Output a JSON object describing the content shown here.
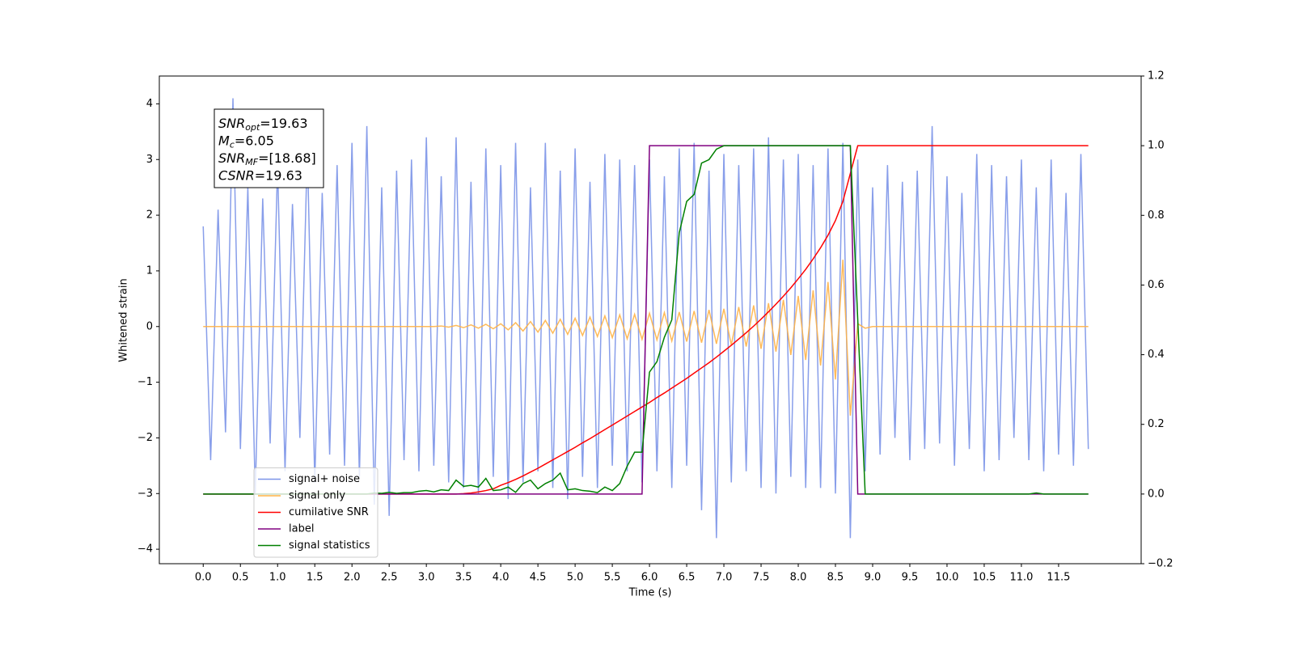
{
  "chart_data": {
    "type": "line",
    "xlabel": "Time (s)",
    "ylabel": "Whitened strain",
    "xlim": [
      -0.59,
      12.61
    ],
    "ylim": [
      -4.26,
      4.5
    ],
    "y2lim": [
      -0.2,
      1.2
    ],
    "xticks": [
      {
        "value": 0,
        "label": "0.0"
      },
      0.5,
      {
        "value": 1,
        "label": "1.0"
      },
      1.5,
      {
        "value": 2,
        "label": "2.0"
      },
      2.5,
      {
        "value": 3,
        "label": "3.0"
      },
      3.5,
      {
        "value": 4,
        "label": "4.0"
      },
      4.5,
      {
        "value": 5,
        "label": "5.0"
      },
      5.5,
      {
        "value": 6,
        "label": "6.0"
      },
      6.5,
      {
        "value": 7,
        "label": "7.0"
      },
      7.5,
      {
        "value": 8,
        "label": "8.0"
      },
      8.5,
      {
        "value": 9,
        "label": "9.0"
      },
      9.5,
      {
        "value": 10,
        "label": "10.0"
      },
      10.5,
      {
        "value": 11,
        "label": "11.0"
      },
      11.5
    ],
    "yticks": [
      {
        "value": -4,
        "label": "−4"
      },
      {
        "value": -3,
        "label": "−3"
      },
      {
        "value": -2,
        "label": "−2"
      },
      {
        "value": -1,
        "label": "−1"
      },
      0,
      1,
      2,
      3,
      4
    ],
    "y2ticks": [
      {
        "value": -0.2,
        "label": "−0.2"
      },
      {
        "value": 0,
        "label": "0.0"
      },
      0.2,
      0.4,
      0.6,
      0.8,
      {
        "value": 1,
        "label": "1.0"
      },
      1.2
    ],
    "legend_loc": "lower left",
    "annotation": [
      {
        "main": "SNR",
        "sub": "opt",
        "rest": "=19.63"
      },
      {
        "main": "M",
        "sub": "c",
        "rest": "=6.05"
      },
      {
        "main": "SNR",
        "sub": "MF",
        "rest": "=[18.68]"
      },
      {
        "main": "CSNR",
        "sub": null,
        "rest": "=19.63"
      }
    ],
    "x": [
      0,
      0.1,
      0.2,
      0.3,
      0.4,
      0.5,
      0.6,
      0.7,
      0.8,
      0.9,
      1,
      1.1,
      1.2,
      1.3,
      1.4,
      1.5,
      1.6,
      1.7,
      1.8,
      1.9,
      2,
      2.1,
      2.2,
      2.3,
      2.4,
      2.5,
      2.6,
      2.7,
      2.8,
      2.9,
      3,
      3.1,
      3.2,
      3.3,
      3.4,
      3.5,
      3.6,
      3.7,
      3.8,
      3.9,
      4,
      4.1,
      4.2,
      4.3,
      4.4,
      4.5,
      4.6,
      4.7,
      4.8,
      4.9,
      5,
      5.1,
      5.2,
      5.3,
      5.4,
      5.5,
      5.6,
      5.7,
      5.8,
      5.9,
      6,
      6.1,
      6.2,
      6.3,
      6.4,
      6.5,
      6.6,
      6.7,
      6.8,
      6.9,
      7,
      7.1,
      7.2,
      7.3,
      7.4,
      7.5,
      7.6,
      7.7,
      7.8,
      7.9,
      8,
      8.1,
      8.2,
      8.3,
      8.4,
      8.5,
      8.6,
      8.7,
      8.8,
      8.9,
      9,
      9.1,
      9.2,
      9.3,
      9.4,
      9.5,
      9.6,
      9.7,
      9.8,
      9.9,
      10,
      10.1,
      10.2,
      10.3,
      10.4,
      10.5,
      10.6,
      10.7,
      10.8,
      10.9,
      11,
      11.1,
      11.2,
      11.3,
      11.4,
      11.5,
      11.6,
      11.7,
      11.8,
      11.9
    ],
    "series": [
      {
        "name": "signal+ noise",
        "color": "#7b93e8",
        "axis": "y",
        "values": [
          1.8,
          -2.4,
          2.1,
          -1.9,
          4.1,
          -2.2,
          2.5,
          -3.0,
          2.3,
          -2.1,
          2.9,
          -2.6,
          2.2,
          -2.0,
          3.2,
          -2.8,
          2.4,
          -2.3,
          2.9,
          -2.5,
          3.3,
          -2.7,
          3.6,
          -3.2,
          2.5,
          -3.4,
          2.8,
          -2.4,
          3.0,
          -2.6,
          3.4,
          -2.5,
          2.7,
          -2.8,
          3.4,
          -2.9,
          2.6,
          -3.0,
          3.2,
          -2.7,
          2.9,
          -3.1,
          3.3,
          -2.8,
          2.5,
          -2.6,
          3.3,
          -2.9,
          2.8,
          -3.1,
          3.2,
          -2.7,
          2.6,
          -2.9,
          3.1,
          -2.5,
          3.0,
          -2.6,
          2.9,
          -2.8,
          3.0,
          -2.6,
          2.7,
          -2.9,
          3.2,
          -2.5,
          3.3,
          -3.3,
          2.8,
          -3.8,
          3.1,
          -2.8,
          2.9,
          -2.6,
          3.2,
          -2.9,
          3.4,
          -3.0,
          3.0,
          -2.7,
          3.1,
          -2.9,
          2.9,
          -2.9,
          3.2,
          -3.0,
          3.3,
          -3.8,
          3.0,
          -2.6,
          2.5,
          -2.3,
          2.9,
          -2.0,
          2.6,
          -2.4,
          2.8,
          -2.2,
          3.6,
          -2.1,
          2.7,
          -2.5,
          2.4,
          -2.2,
          3.1,
          -2.6,
          2.9,
          -2.4,
          2.7,
          -2.0,
          3.0,
          -2.4,
          2.5,
          -2.6,
          3.0,
          -2.3,
          2.4,
          -2.5,
          3.1,
          -2.2
        ]
      },
      {
        "name": "signal only",
        "color": "#ffb347",
        "axis": "y",
        "values": [
          0,
          0,
          0,
          0,
          0,
          0,
          0,
          0,
          0,
          0,
          0,
          0,
          0,
          0,
          0,
          0,
          0,
          0,
          0,
          0,
          0,
          0,
          0,
          0,
          0,
          0,
          0,
          0,
          0,
          0,
          0,
          0,
          0.01,
          -0.01,
          0.02,
          -0.02,
          0.03,
          -0.03,
          0.04,
          -0.04,
          0.05,
          -0.06,
          0.07,
          -0.08,
          0.09,
          -0.1,
          0.11,
          -0.12,
          0.13,
          -0.14,
          0.15,
          -0.16,
          0.17,
          -0.18,
          0.19,
          -0.2,
          0.21,
          -0.22,
          0.22,
          -0.23,
          0.24,
          -0.24,
          0.25,
          -0.26,
          0.26,
          -0.27,
          0.28,
          -0.29,
          0.3,
          -0.31,
          0.32,
          -0.33,
          0.35,
          -0.36,
          0.38,
          -0.4,
          0.42,
          -0.45,
          0.48,
          -0.51,
          0.55,
          -0.6,
          0.65,
          -0.7,
          0.8,
          -0.95,
          1.2,
          -1.6,
          0.05,
          -0.03,
          0,
          0,
          0,
          0,
          0,
          0,
          0,
          0,
          0,
          0,
          0,
          0,
          0,
          0,
          0,
          0,
          0,
          0,
          0,
          0,
          0,
          0,
          0,
          0,
          0,
          0,
          0,
          0,
          0,
          0
        ]
      },
      {
        "name": "cumilative SNR",
        "color": "#ff0000",
        "axis": "y2",
        "values": [
          0,
          0,
          0,
          0,
          0,
          0,
          0,
          0,
          0,
          0,
          0,
          0,
          0,
          0,
          0,
          0,
          0,
          0,
          0,
          0,
          0,
          0,
          0,
          0,
          0,
          0,
          0,
          0,
          0,
          0,
          0,
          0,
          0,
          0,
          0,
          0.001,
          0.003,
          0.006,
          0.01,
          0.015,
          0.025,
          0.033,
          0.042,
          0.052,
          0.063,
          0.074,
          0.086,
          0.098,
          0.11,
          0.122,
          0.134,
          0.147,
          0.159,
          0.172,
          0.185,
          0.198,
          0.211,
          0.224,
          0.237,
          0.25,
          0.263,
          0.277,
          0.29,
          0.304,
          0.318,
          0.332,
          0.347,
          0.362,
          0.377,
          0.393,
          0.41,
          0.427,
          0.445,
          0.463,
          0.482,
          0.502,
          0.523,
          0.545,
          0.568,
          0.592,
          0.618,
          0.645,
          0.675,
          0.707,
          0.743,
          0.785,
          0.84,
          0.92,
          1,
          1,
          1,
          1,
          1,
          1,
          1,
          1,
          1,
          1,
          1,
          1,
          1,
          1,
          1,
          1,
          1,
          1,
          1,
          1,
          1,
          1,
          1,
          1,
          1,
          1,
          1,
          1,
          1,
          1,
          1,
          1
        ]
      },
      {
        "name": "label",
        "color": "#800080",
        "axis": "y2",
        "values": [
          0,
          0,
          0,
          0,
          0,
          0,
          0,
          0,
          0,
          0,
          0,
          0,
          0,
          0,
          0,
          0,
          0,
          0,
          0,
          0,
          0,
          0,
          0,
          0,
          0,
          0,
          0,
          0,
          0,
          0,
          0,
          0,
          0,
          0,
          0,
          0,
          0,
          0,
          0,
          0,
          0,
          0,
          0,
          0,
          0,
          0,
          0,
          0,
          0,
          0,
          0,
          0,
          0,
          0,
          0,
          0,
          0,
          0,
          0,
          0,
          1,
          1,
          1,
          1,
          1,
          1,
          1,
          1,
          1,
          1,
          1,
          1,
          1,
          1,
          1,
          1,
          1,
          1,
          1,
          1,
          1,
          1,
          1,
          1,
          1,
          1,
          1,
          1,
          0,
          0,
          0,
          0,
          0,
          0,
          0,
          0,
          0,
          0,
          0,
          0,
          0,
          0,
          0,
          0,
          0,
          0,
          0,
          0,
          0,
          0,
          0,
          0,
          0,
          0,
          0,
          0,
          0,
          0,
          0,
          0
        ]
      },
      {
        "name": "signal statistics",
        "color": "#008000",
        "axis": "y2",
        "values": [
          0,
          0,
          0,
          0,
          0,
          0,
          0,
          0,
          0,
          0,
          0,
          0,
          0,
          0,
          0,
          0,
          0,
          0,
          0,
          0,
          0,
          0,
          0,
          0.003,
          0.002,
          0.005,
          0.002,
          0.004,
          0.004,
          0.008,
          0.01,
          0.006,
          0.012,
          0.01,
          0.04,
          0.022,
          0.025,
          0.02,
          0.045,
          0.01,
          0.012,
          0.02,
          0.005,
          0.03,
          0.04,
          0.015,
          0.03,
          0.04,
          0.06,
          0.012,
          0.015,
          0.01,
          0.008,
          0.004,
          0.02,
          0.01,
          0.03,
          0.08,
          0.12,
          0.12,
          0.35,
          0.38,
          0.45,
          0.5,
          0.75,
          0.84,
          0.86,
          0.95,
          0.96,
          0.99,
          1,
          1,
          1,
          1,
          1,
          1,
          1,
          1,
          1,
          1,
          1,
          1,
          1,
          1,
          1,
          1,
          1,
          1,
          0.5,
          0,
          0,
          0,
          0,
          0,
          0,
          0,
          0,
          0,
          0,
          0,
          0,
          0,
          0,
          0,
          0,
          0,
          0,
          0,
          0,
          0,
          0,
          0,
          0.003,
          0,
          0,
          0,
          0,
          0,
          0,
          0
        ]
      }
    ]
  }
}
